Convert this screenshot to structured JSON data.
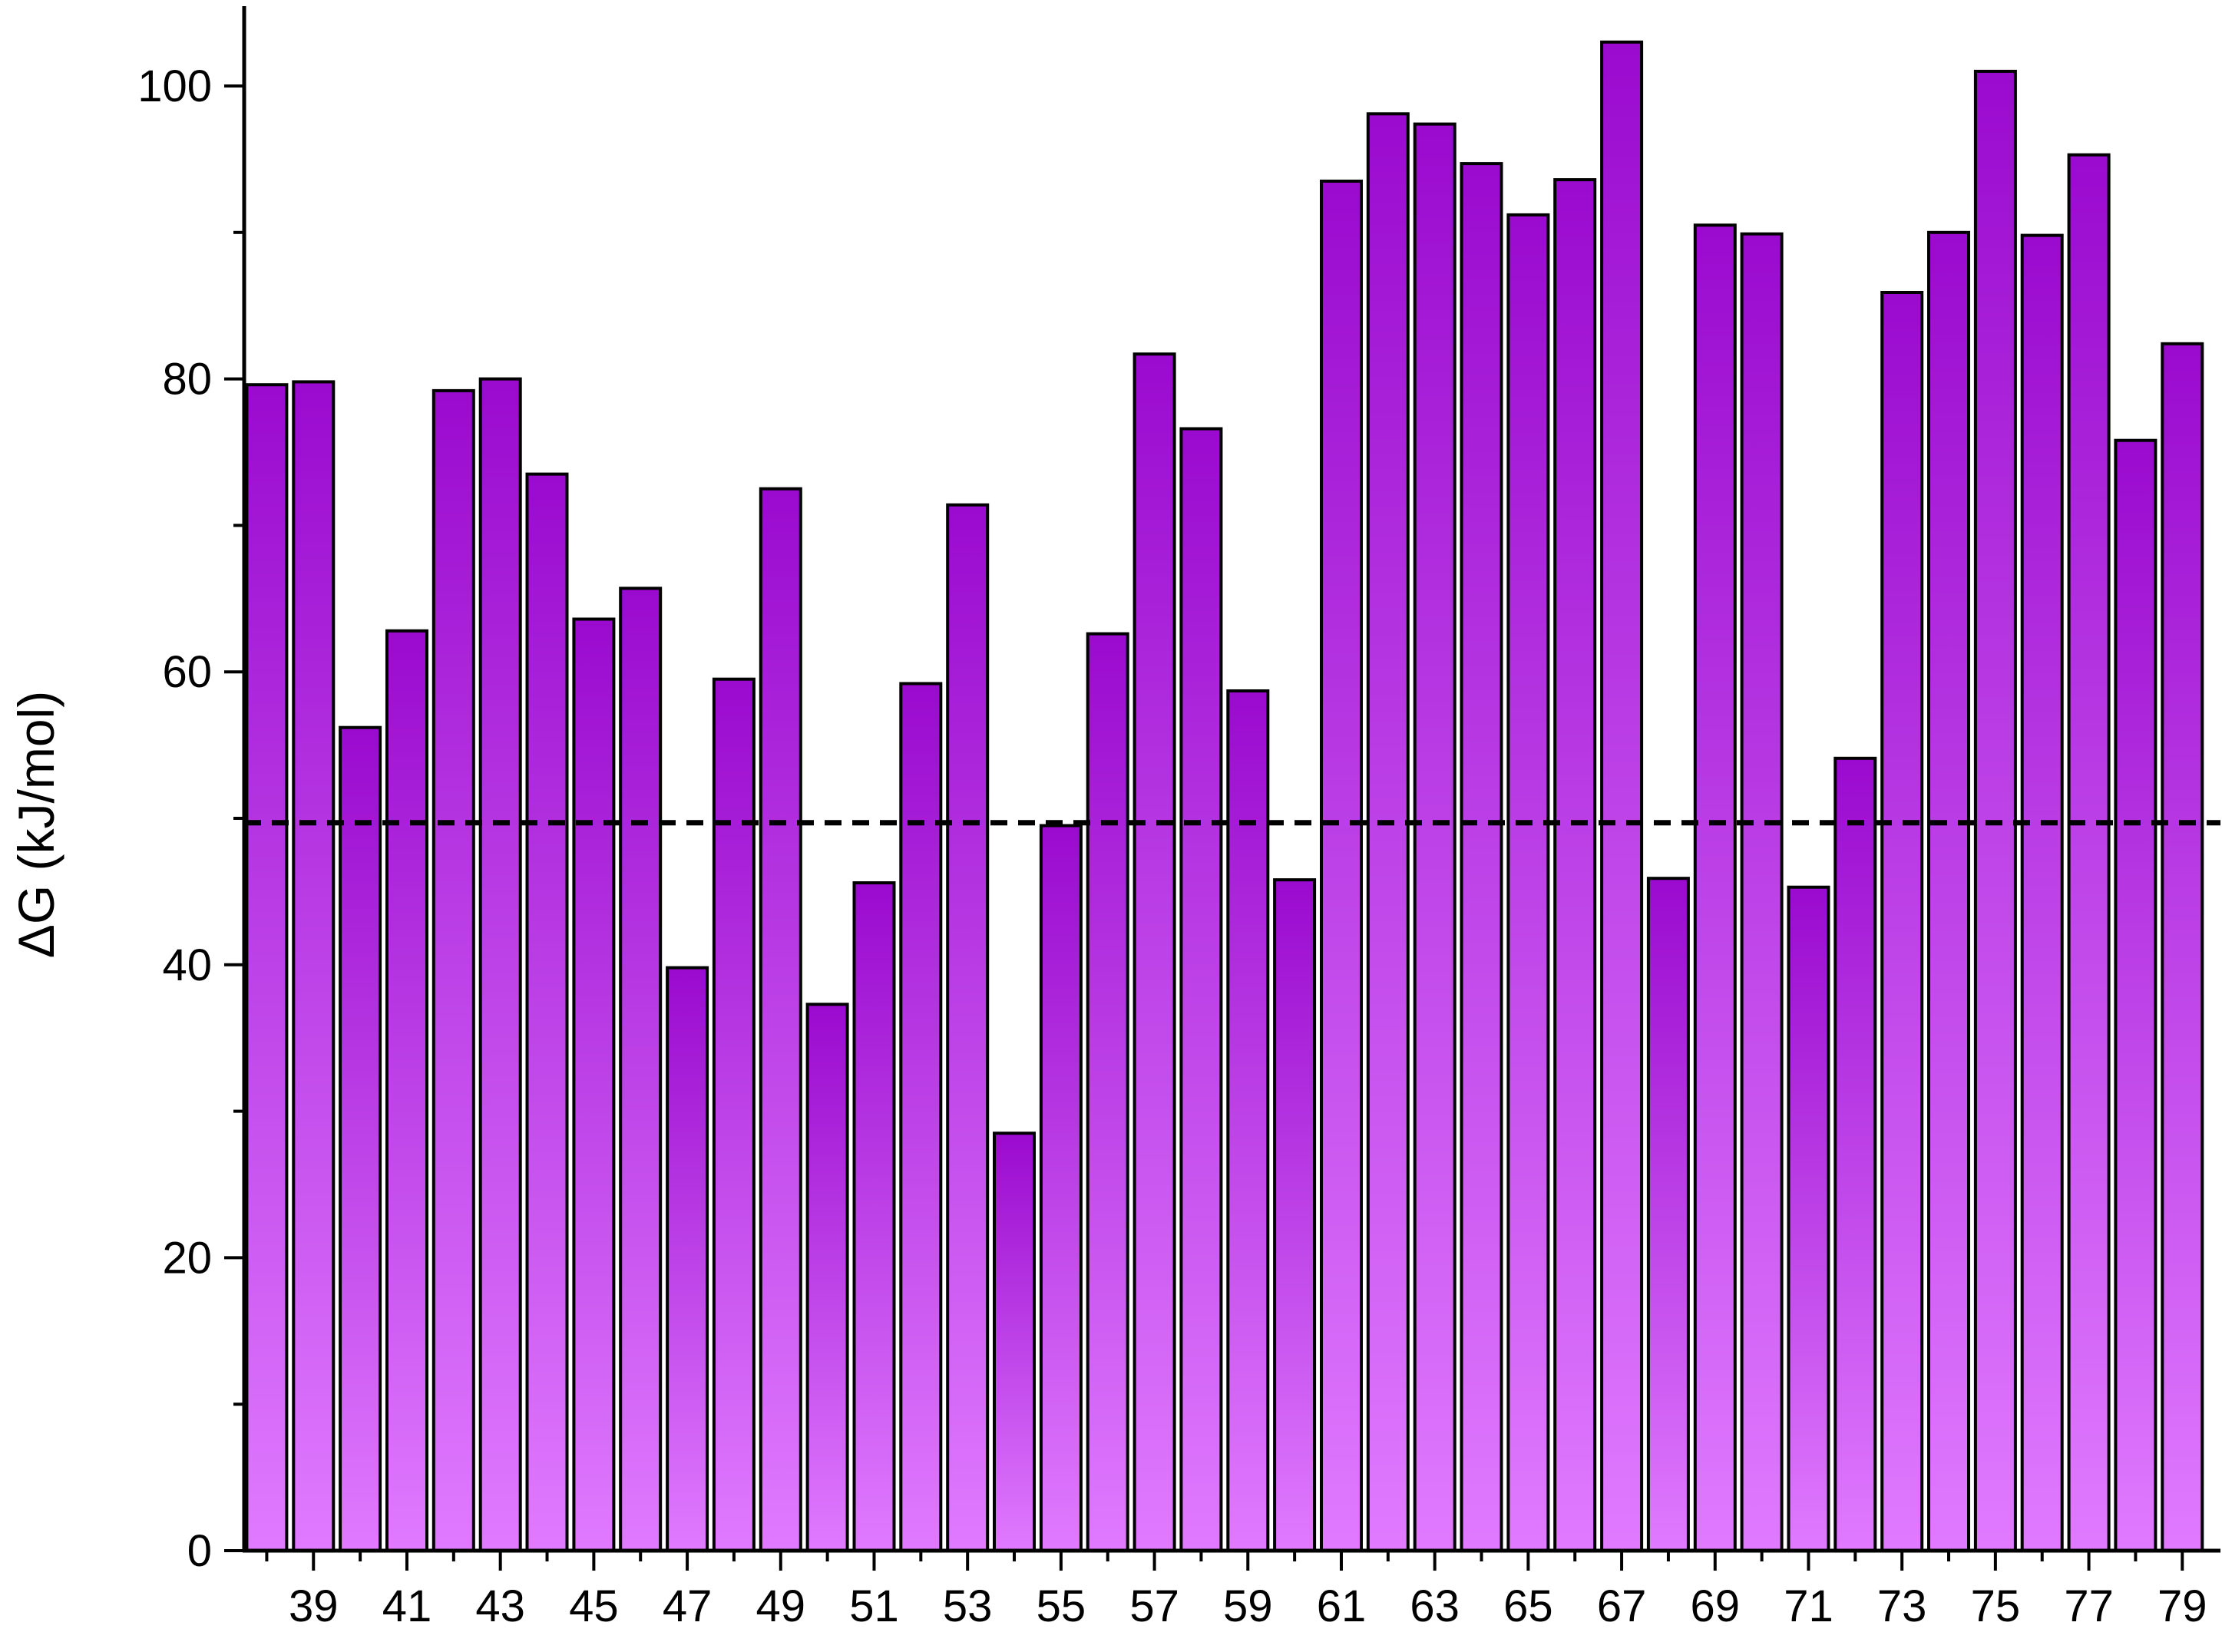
{
  "chart_data": {
    "type": "bar",
    "title": "",
    "xlabel": "",
    "ylabel": "ΔG (kJ/mol)",
    "ylim": [
      0,
      103
    ],
    "yticks": [
      0,
      20,
      40,
      60,
      80,
      100
    ],
    "y_minor_step": 10,
    "x_tick_labels": [
      "39",
      "41",
      "43",
      "45",
      "47",
      "49",
      "51",
      "53",
      "55",
      "57",
      "59",
      "61",
      "63",
      "65",
      "67",
      "69",
      "71",
      "73",
      "75",
      "77",
      "79"
    ],
    "categories": [
      38,
      39,
      40,
      41,
      42,
      43,
      44,
      45,
      46,
      47,
      48,
      49,
      50,
      51,
      52,
      53,
      54,
      55,
      56,
      57,
      58,
      59,
      60,
      61,
      62,
      63,
      64,
      65,
      66,
      67,
      68,
      69,
      70,
      71,
      72,
      73,
      74,
      75,
      76,
      77,
      78,
      79
    ],
    "values": [
      79.6,
      79.8,
      56.2,
      62.8,
      79.2,
      80.0,
      73.5,
      63.6,
      65.7,
      39.8,
      59.5,
      72.5,
      37.3,
      45.6,
      59.2,
      71.4,
      28.5,
      49.5,
      62.6,
      81.7,
      76.6,
      58.7,
      45.8,
      93.5,
      98.1,
      97.4,
      94.7,
      91.2,
      93.6,
      103.0,
      45.9,
      90.5,
      89.9,
      45.3,
      54.1,
      85.9,
      90.0,
      101.0,
      89.8,
      95.3,
      75.8,
      82.4
    ],
    "reference_line": {
      "y": 49.7,
      "style": "dashed"
    },
    "grid": false,
    "colors": {
      "bar_top": "#9a0acf",
      "bar_bottom": "#e07aff",
      "outline": "#000000"
    }
  }
}
